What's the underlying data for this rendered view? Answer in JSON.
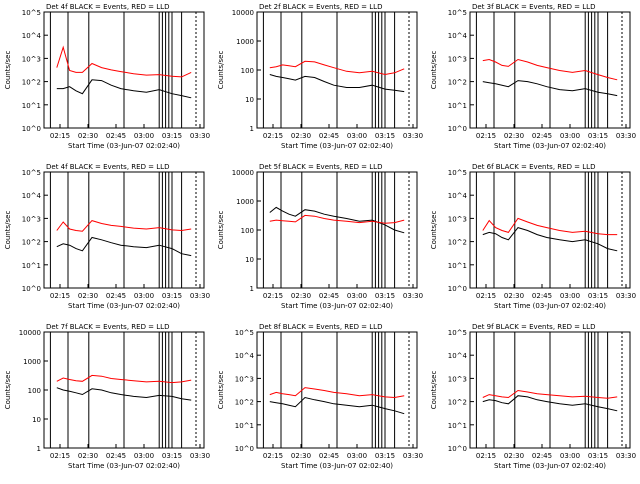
{
  "page": {
    "start_time_label": "Start Time (03-Jun-07 02:02:40)",
    "x_ticks": [
      "02:15",
      "02:30",
      "02:45",
      "03:00",
      "03:15",
      "03:30"
    ],
    "y_label": "Counts/sec",
    "colors": {
      "events": "#000000",
      "lld": "#ff0000",
      "axes": "#000000"
    }
  },
  "chart_data": [
    {
      "type": "line",
      "title": "Det 4f BLACK = Events, RED = LLD",
      "xlabel": "Start Time (03-Jun-07 02:02:40)",
      "ylabel": "Counts/sec",
      "yscale": "log",
      "ylim": [
        1,
        100000
      ],
      "ytick_labels": [
        "10^0",
        "10^1",
        "10^2",
        "10^3",
        "10^4",
        "10^5"
      ],
      "x": [
        0.08,
        0.12,
        0.16,
        0.2,
        0.24,
        0.3,
        0.36,
        0.42,
        0.48,
        0.56,
        0.64,
        0.72,
        0.8,
        0.86,
        0.92
      ],
      "series": [
        {
          "name": "BLACK = Events",
          "color": "#000000",
          "values": [
            50,
            50,
            60,
            40,
            30,
            120,
            110,
            70,
            50,
            40,
            35,
            45,
            30,
            25,
            20
          ]
        },
        {
          "name": "RED = LLD",
          "color": "#ff0000",
          "values": [
            400,
            3000,
            300,
            250,
            250,
            600,
            400,
            320,
            270,
            220,
            190,
            200,
            170,
            160,
            250
          ]
        }
      ]
    },
    {
      "type": "line",
      "title": "Det 2f BLACK = Events, RED = LLD",
      "xlabel": "Start Time (03-Jun-07 02:02:40)",
      "ylabel": "Counts/sec",
      "yscale": "log",
      "ylim": [
        1,
        10000
      ],
      "ytick_labels": [
        "1",
        "10",
        "100",
        "1000",
        "10000"
      ],
      "x": [
        0.08,
        0.12,
        0.16,
        0.2,
        0.24,
        0.3,
        0.36,
        0.42,
        0.48,
        0.56,
        0.64,
        0.72,
        0.8,
        0.86,
        0.92
      ],
      "series": [
        {
          "name": "BLACK = Events",
          "color": "#000000",
          "values": [
            70,
            60,
            55,
            50,
            45,
            60,
            55,
            40,
            30,
            25,
            25,
            30,
            22,
            20,
            18
          ]
        },
        {
          "name": "RED = LLD",
          "color": "#ff0000",
          "values": [
            120,
            130,
            150,
            140,
            130,
            200,
            190,
            150,
            120,
            90,
            80,
            90,
            70,
            80,
            110
          ]
        }
      ]
    },
    {
      "type": "line",
      "title": "Det 3f BLACK = Events, RED = LLD",
      "xlabel": "Start Time (03-Jun-07 02:02:40)",
      "ylabel": "Counts/sec",
      "yscale": "log",
      "ylim": [
        1,
        100000
      ],
      "ytick_labels": [
        "10^0",
        "10^1",
        "10^2",
        "10^3",
        "10^4",
        "10^5"
      ],
      "x": [
        0.08,
        0.12,
        0.16,
        0.2,
        0.24,
        0.3,
        0.36,
        0.42,
        0.48,
        0.56,
        0.64,
        0.72,
        0.8,
        0.86,
        0.92
      ],
      "series": [
        {
          "name": "BLACK = Events",
          "color": "#000000",
          "values": [
            100,
            90,
            80,
            70,
            60,
            110,
            100,
            80,
            60,
            45,
            40,
            50,
            35,
            30,
            25
          ]
        },
        {
          "name": "RED = LLD",
          "color": "#ff0000",
          "values": [
            800,
            900,
            700,
            500,
            450,
            900,
            700,
            500,
            400,
            300,
            250,
            300,
            200,
            150,
            120
          ]
        }
      ]
    },
    {
      "type": "line",
      "title": "Det 4f BLACK = Events, RED = LLD",
      "xlabel": "Start Time (03-Jun-07 02:02:40)",
      "ylabel": "Counts/sec",
      "yscale": "log",
      "ylim": [
        1,
        100000
      ],
      "ytick_labels": [
        "10^0",
        "10^1",
        "10^2",
        "10^3",
        "10^4",
        "10^5"
      ],
      "x": [
        0.08,
        0.12,
        0.16,
        0.2,
        0.24,
        0.3,
        0.36,
        0.42,
        0.48,
        0.56,
        0.64,
        0.72,
        0.8,
        0.86,
        0.92
      ],
      "series": [
        {
          "name": "BLACK = Events",
          "color": "#000000",
          "values": [
            60,
            80,
            70,
            50,
            40,
            150,
            120,
            90,
            70,
            60,
            55,
            70,
            50,
            30,
            25
          ]
        },
        {
          "name": "RED = LLD",
          "color": "#ff0000",
          "values": [
            300,
            700,
            350,
            300,
            280,
            800,
            600,
            500,
            450,
            380,
            350,
            400,
            320,
            300,
            350
          ]
        }
      ]
    },
    {
      "type": "line",
      "title": "Det 5f BLACK = Events, RED = LLD",
      "xlabel": "Start Time (03-Jun-07 02:02:40)",
      "ylabel": "Counts/sec",
      "yscale": "log",
      "ylim": [
        1,
        10000
      ],
      "ytick_labels": [
        "1",
        "10",
        "100",
        "1000",
        "10000"
      ],
      "x": [
        0.08,
        0.12,
        0.16,
        0.2,
        0.24,
        0.3,
        0.36,
        0.42,
        0.48,
        0.56,
        0.64,
        0.72,
        0.8,
        0.86,
        0.92
      ],
      "series": [
        {
          "name": "BLACK = Events",
          "color": "#000000",
          "values": [
            400,
            600,
            450,
            350,
            300,
            500,
            450,
            350,
            300,
            250,
            200,
            220,
            150,
            100,
            80
          ]
        },
        {
          "name": "RED = LLD",
          "color": "#ff0000",
          "values": [
            200,
            220,
            210,
            200,
            190,
            320,
            300,
            250,
            220,
            200,
            180,
            200,
            170,
            180,
            220
          ]
        }
      ]
    },
    {
      "type": "line",
      "title": "Det 6f BLACK = Events, RED = LLD",
      "xlabel": "Start Time (03-Jun-07 02:02:40)",
      "ylabel": "Counts/sec",
      "yscale": "log",
      "ylim": [
        1,
        100000
      ],
      "ytick_labels": [
        "10^0",
        "10^1",
        "10^2",
        "10^3",
        "10^4",
        "10^5"
      ],
      "x": [
        0.08,
        0.12,
        0.16,
        0.2,
        0.24,
        0.3,
        0.36,
        0.42,
        0.48,
        0.56,
        0.64,
        0.72,
        0.8,
        0.86,
        0.92
      ],
      "series": [
        {
          "name": "BLACK = Events",
          "color": "#000000",
          "values": [
            200,
            250,
            220,
            150,
            120,
            400,
            300,
            200,
            150,
            120,
            100,
            120,
            80,
            50,
            40
          ]
        },
        {
          "name": "RED = LLD",
          "color": "#ff0000",
          "values": [
            300,
            800,
            400,
            300,
            250,
            1000,
            700,
            500,
            400,
            300,
            250,
            280,
            220,
            200,
            200
          ]
        }
      ]
    },
    {
      "type": "line",
      "title": "Det 7f BLACK = Events, RED = LLD",
      "xlabel": "Start Time (03-Jun-07 02:02:40)",
      "ylabel": "Counts/sec",
      "yscale": "log",
      "ylim": [
        1,
        10000
      ],
      "ytick_labels": [
        "1",
        "10",
        "100",
        "1000",
        "10000"
      ],
      "x": [
        0.08,
        0.12,
        0.16,
        0.2,
        0.24,
        0.3,
        0.36,
        0.42,
        0.48,
        0.56,
        0.64,
        0.72,
        0.8,
        0.86,
        0.92
      ],
      "series": [
        {
          "name": "BLACK = Events",
          "color": "#000000",
          "values": [
            120,
            100,
            90,
            80,
            70,
            110,
            100,
            80,
            70,
            60,
            55,
            65,
            60,
            50,
            45
          ]
        },
        {
          "name": "RED = LLD",
          "color": "#ff0000",
          "values": [
            200,
            260,
            230,
            210,
            200,
            320,
            300,
            250,
            230,
            210,
            190,
            200,
            180,
            190,
            220
          ]
        }
      ]
    },
    {
      "type": "line",
      "title": "Det 8f BLACK = Events, RED = LLD",
      "xlabel": "Start Time (03-Jun-07 02:02:40)",
      "ylabel": "Counts/sec",
      "yscale": "log",
      "ylim": [
        1,
        100000
      ],
      "ytick_labels": [
        "10^0",
        "10^1",
        "10^2",
        "10^3",
        "10^4",
        "10^5"
      ],
      "x": [
        0.08,
        0.12,
        0.16,
        0.2,
        0.24,
        0.3,
        0.36,
        0.42,
        0.48,
        0.56,
        0.64,
        0.72,
        0.8,
        0.86,
        0.92
      ],
      "series": [
        {
          "name": "BLACK = Events",
          "color": "#000000",
          "values": [
            100,
            90,
            80,
            70,
            60,
            150,
            120,
            100,
            80,
            70,
            60,
            70,
            50,
            40,
            30
          ]
        },
        {
          "name": "RED = LLD",
          "color": "#ff0000",
          "values": [
            200,
            250,
            220,
            200,
            180,
            400,
            350,
            300,
            250,
            220,
            180,
            200,
            160,
            150,
            180
          ]
        }
      ]
    },
    {
      "type": "line",
      "title": "Det 9f BLACK = Events, RED = LLD",
      "xlabel": "Start Time (03-Jun-07 02:02:40)",
      "ylabel": "Counts/sec",
      "yscale": "log",
      "ylim": [
        1,
        100000
      ],
      "ytick_labels": [
        "10^0",
        "10^1",
        "10^2",
        "10^3",
        "10^4",
        "10^5"
      ],
      "x": [
        0.08,
        0.12,
        0.16,
        0.2,
        0.24,
        0.3,
        0.36,
        0.42,
        0.48,
        0.56,
        0.64,
        0.72,
        0.8,
        0.86,
        0.92
      ],
      "series": [
        {
          "name": "BLACK = Events",
          "color": "#000000",
          "values": [
            100,
            120,
            110,
            90,
            80,
            180,
            160,
            120,
            100,
            80,
            70,
            80,
            60,
            50,
            40
          ]
        },
        {
          "name": "RED = LLD",
          "color": "#ff0000",
          "values": [
            150,
            200,
            180,
            160,
            150,
            300,
            260,
            220,
            200,
            180,
            160,
            170,
            150,
            140,
            160
          ]
        }
      ]
    }
  ]
}
